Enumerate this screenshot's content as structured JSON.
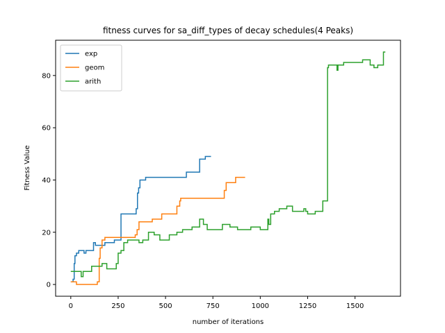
{
  "chart_data": {
    "type": "line",
    "title": "fitness curves for sa_diff_types of decay schedules(4 Peaks)",
    "xlabel": "number of iterations",
    "ylabel": "Fitness Value",
    "xlim": [
      -80,
      1740
    ],
    "ylim": [
      -4.5,
      93.5
    ],
    "xticks": [
      0,
      250,
      500,
      750,
      1000,
      1250,
      1500
    ],
    "yticks": [
      0,
      20,
      40,
      60,
      80
    ],
    "grid": false,
    "legend_position": "top-left",
    "series": [
      {
        "name": "exp",
        "color": "#1f77b4",
        "step": true,
        "x": [
          0,
          12,
          18,
          22,
          30,
          42,
          70,
          80,
          120,
          130,
          180,
          230,
          265,
          345,
          352,
          358,
          365,
          375,
          395,
          405,
          610,
          680,
          710,
          740
        ],
        "y": [
          1,
          2,
          8,
          11,
          12,
          13,
          12,
          13,
          16,
          15,
          16,
          17,
          27,
          29,
          35,
          37,
          40,
          40,
          41,
          41,
          43,
          48,
          49,
          49
        ]
      },
      {
        "name": "geom",
        "color": "#ff7f0e",
        "step": true,
        "x": [
          0,
          30,
          140,
          150,
          155,
          165,
          180,
          260,
          340,
          350,
          360,
          430,
          480,
          560,
          575,
          580,
          800,
          810,
          820,
          870,
          920
        ],
        "y": [
          1,
          0,
          1,
          10,
          14,
          17,
          18,
          18,
          19,
          21,
          24,
          25,
          27,
          30,
          32,
          33,
          33,
          36,
          39,
          41,
          41
        ]
      },
      {
        "name": "arith",
        "color": "#2ca02c",
        "step": true,
        "x": [
          0,
          55,
          65,
          75,
          110,
          165,
          190,
          240,
          250,
          265,
          280,
          300,
          360,
          380,
          410,
          440,
          470,
          520,
          560,
          590,
          640,
          680,
          700,
          720,
          800,
          840,
          880,
          950,
          1000,
          1040,
          1045,
          1055,
          1075,
          1100,
          1140,
          1170,
          1230,
          1240,
          1250,
          1290,
          1330,
          1355,
          1360,
          1370,
          1400,
          1405,
          1410,
          1440,
          1480,
          1540,
          1580,
          1600,
          1620,
          1650,
          1660
        ],
        "y": [
          5,
          3,
          5,
          5,
          7,
          8,
          6,
          8,
          12,
          13,
          16,
          17,
          16,
          17,
          20,
          19,
          17,
          19,
          20,
          21,
          22,
          25,
          23,
          21,
          23,
          22,
          21,
          22,
          21,
          25,
          23,
          27,
          28,
          29,
          30,
          28,
          29,
          28,
          27,
          28,
          32,
          83,
          84,
          84,
          84,
          82,
          84,
          85,
          85,
          86,
          84,
          83,
          84,
          89,
          89
        ]
      }
    ]
  }
}
